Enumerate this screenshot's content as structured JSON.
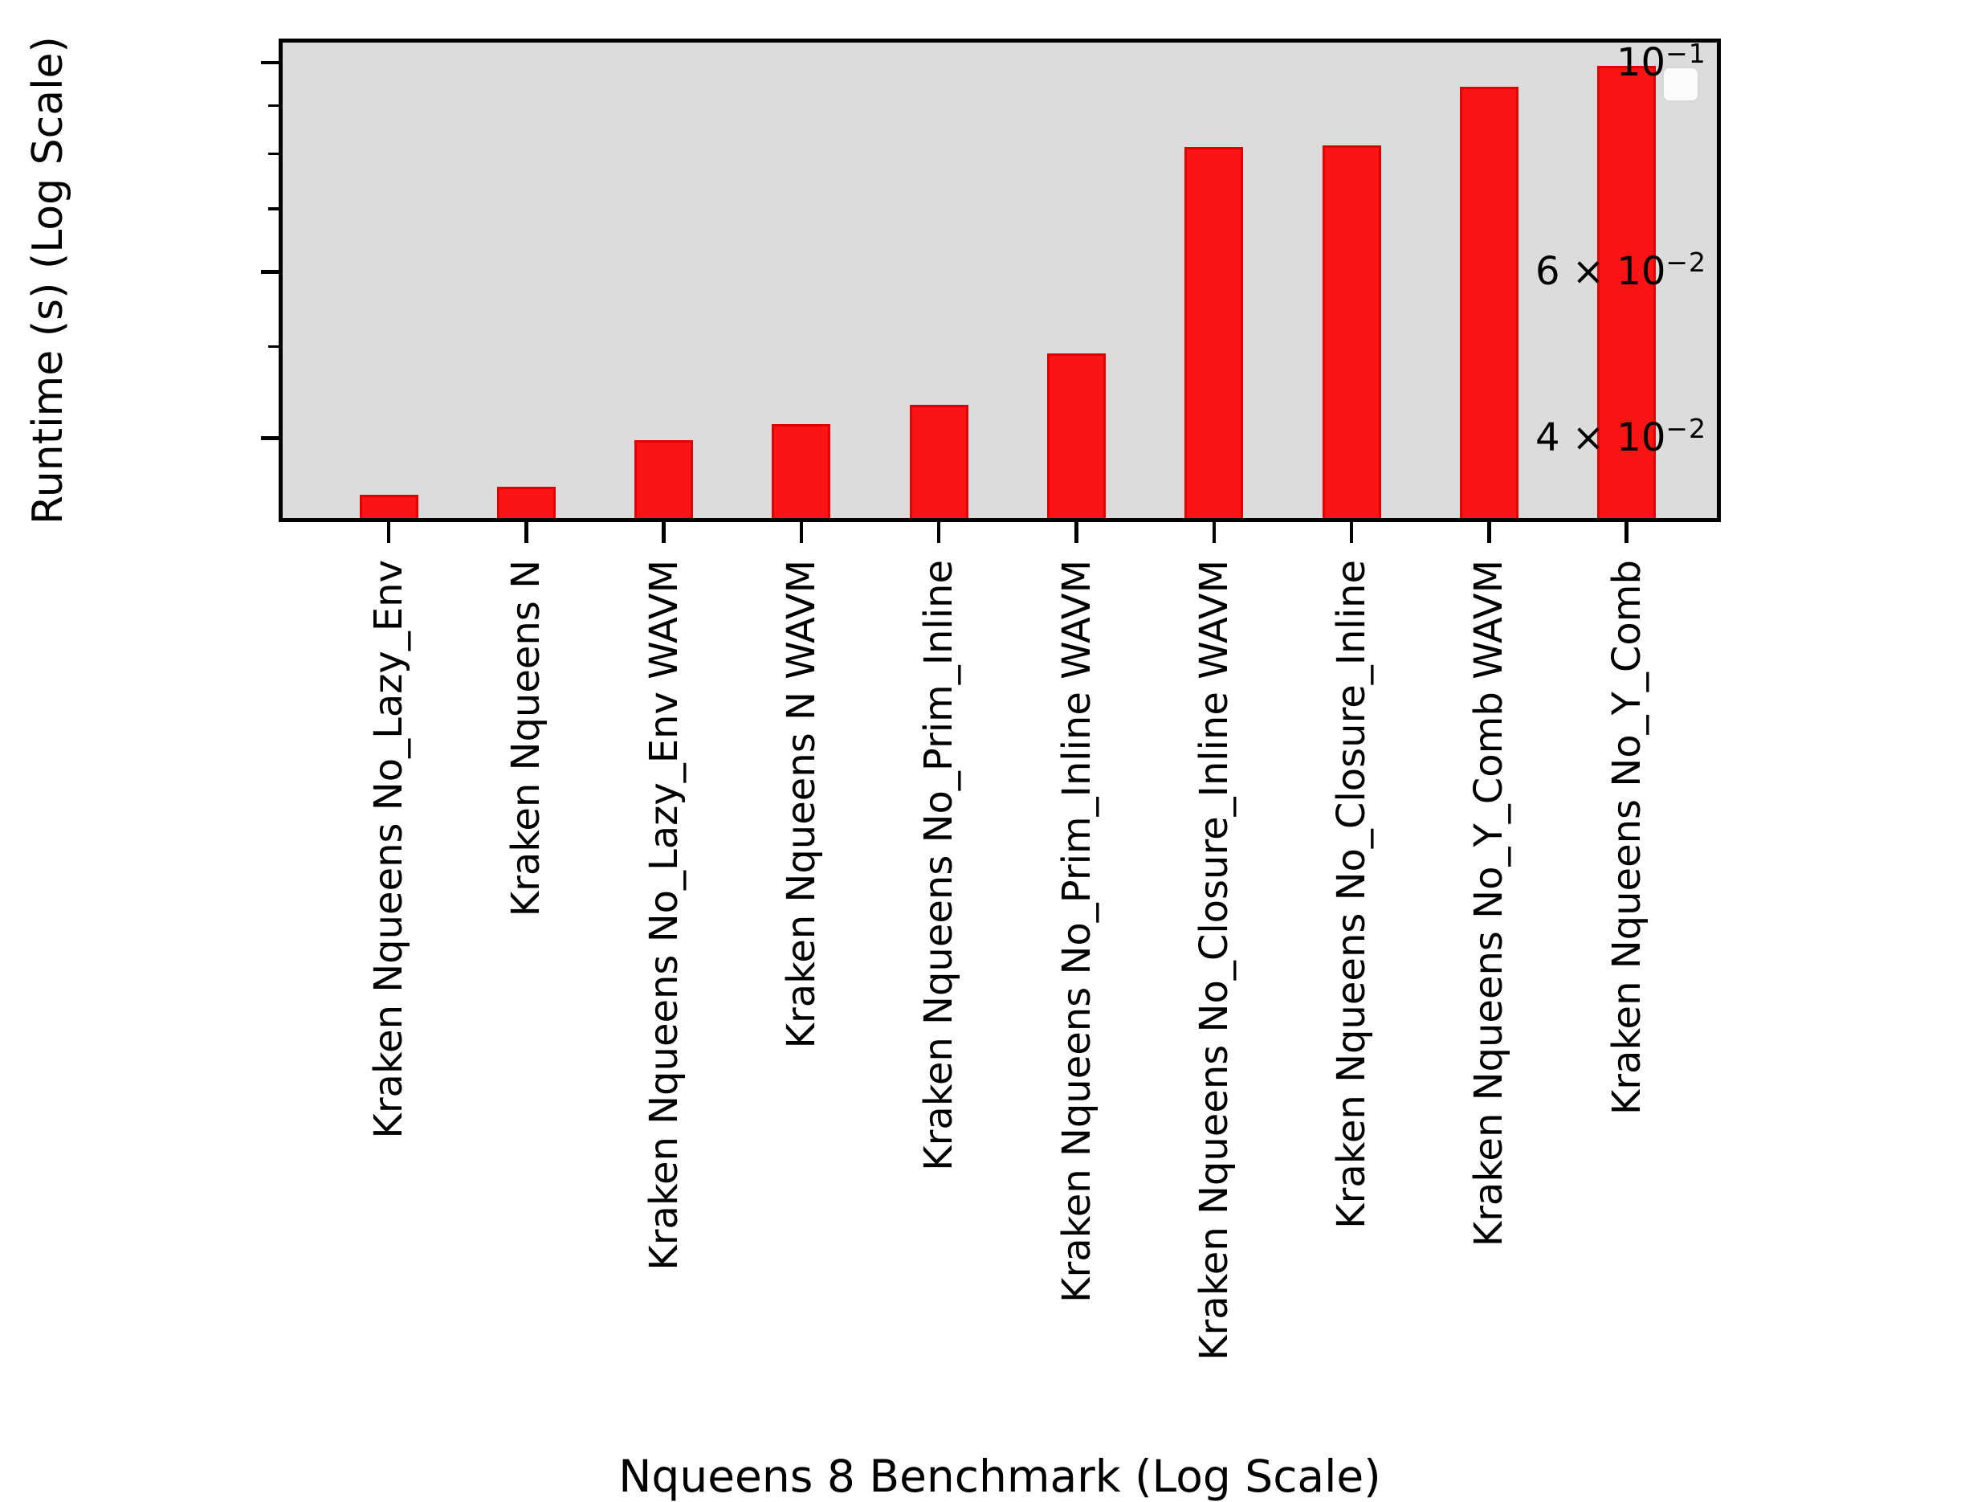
{
  "figure": {
    "background": "#ffffff",
    "plot_background": "#dcdcdc",
    "axis_color": "#000000",
    "text_color": "#000000"
  },
  "chart_data": {
    "type": "bar",
    "title": "",
    "xlabel": "Nqueens 8 Benchmark (Log Scale)",
    "ylabel": "Runtime (s) (Log Scale)",
    "yscale": "log",
    "ylim": [
      0.0329,
      0.105
    ],
    "grid": false,
    "legend": {
      "visible": true,
      "position": "upper right",
      "entries": []
    },
    "categories": [
      "Kraken Nqueens No_Lazy_Env",
      "Kraken Nqueens N",
      "Kraken Nqueens No_Lazy_Env WAVM",
      "Kraken Nqueens N WAVM",
      "Kraken Nqueens No_Prim_Inline",
      "Kraken Nqueens No_Prim_Inline WAVM",
      "Kraken Nqueens No_Closure_Inline WAVM",
      "Kraken Nqueens No_Closure_Inline",
      "Kraken Nqueens No_Y_Comb WAVM",
      "Kraken Nqueens No_Y_Comb"
    ],
    "values": [
      0.0348,
      0.0355,
      0.0398,
      0.0414,
      0.0434,
      0.0492,
      0.0814,
      0.0817,
      0.0943,
      0.0992
    ],
    "bar_color": "#fa1414",
    "bar_edge_color": "#e00000",
    "yticks_major": [
      {
        "value": 0.1,
        "prefix": "",
        "base": "10",
        "exp": "−1"
      },
      {
        "value": 0.06,
        "prefix": "6 × ",
        "base": "10",
        "exp": "−2"
      },
      {
        "value": 0.04,
        "prefix": "4 × ",
        "base": "10",
        "exp": "−2"
      }
    ],
    "yticks_minor": [
      0.09,
      0.08,
      0.07,
      0.05
    ]
  }
}
